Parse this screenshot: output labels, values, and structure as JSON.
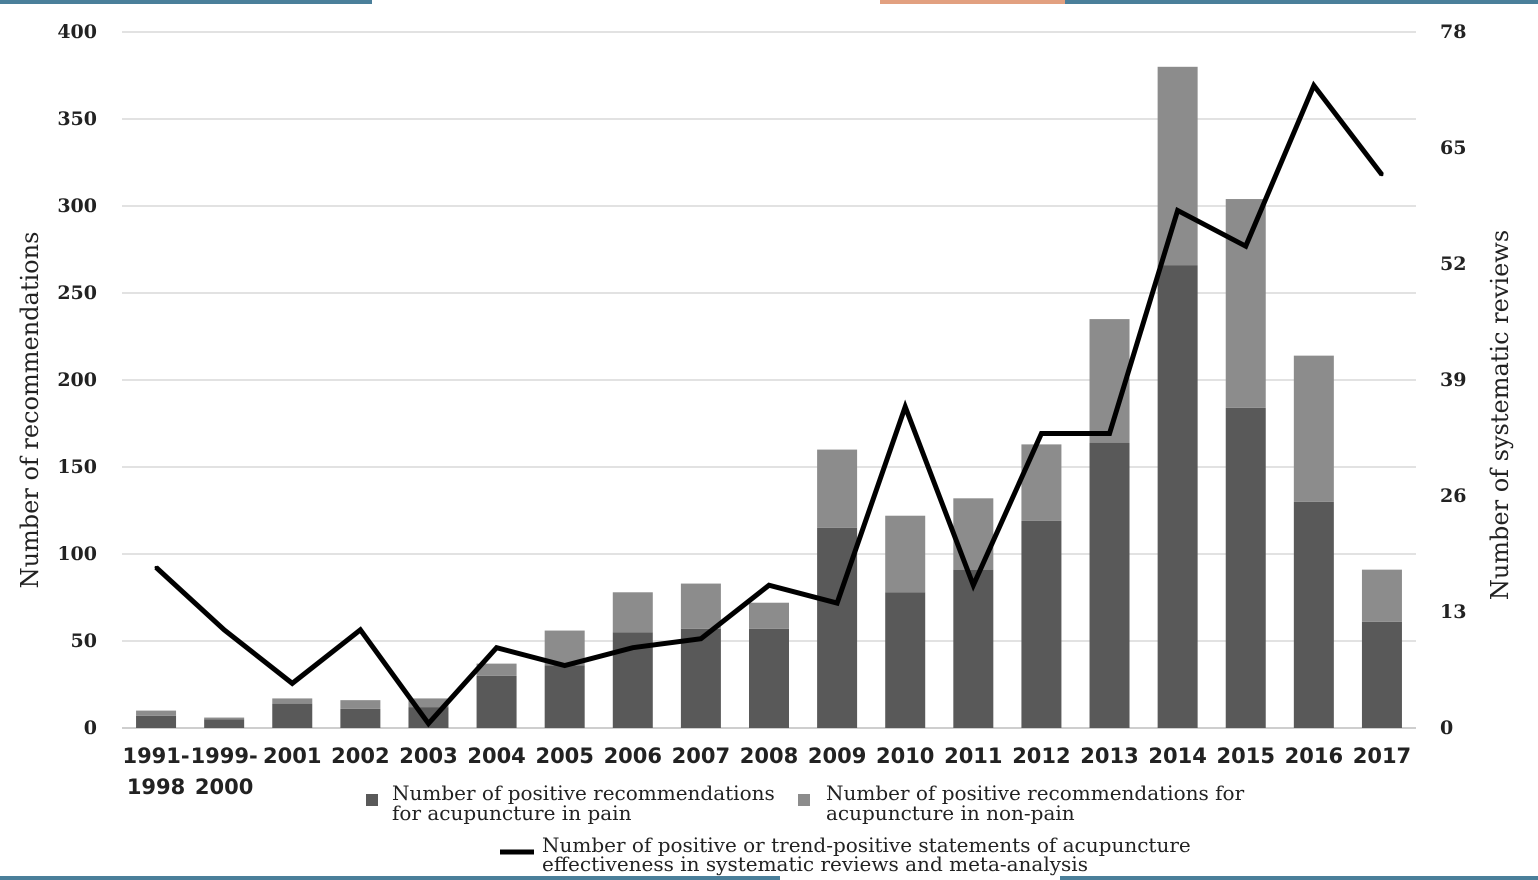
{
  "chart_data": {
    "type": "bar",
    "stacked": true,
    "categories": [
      [
        "1991-",
        "1998"
      ],
      [
        "1999-",
        "2000"
      ],
      [
        "2001"
      ],
      [
        "2002"
      ],
      [
        "2003"
      ],
      [
        "2004"
      ],
      [
        "2005"
      ],
      [
        "2006"
      ],
      [
        "2007"
      ],
      [
        "2008"
      ],
      [
        "2009"
      ],
      [
        "2010"
      ],
      [
        "2011"
      ],
      [
        "2012"
      ],
      [
        "2013"
      ],
      [
        "2014"
      ],
      [
        "2015"
      ],
      [
        "2016"
      ],
      [
        "2017"
      ]
    ],
    "series": [
      {
        "name_lines": [
          "Number of positive recommendations",
          "for acupuncture in pain"
        ],
        "kind": "bar",
        "axis": "left",
        "color": "#595959",
        "values": [
          7,
          5,
          14,
          11,
          12,
          30,
          36,
          55,
          57,
          57,
          115,
          78,
          91,
          119,
          164,
          266,
          184,
          130,
          61
        ]
      },
      {
        "name_lines": [
          "Number of positive recommendations for",
          "acupuncture in non-pain"
        ],
        "kind": "bar",
        "axis": "left",
        "color": "#8c8c8c",
        "values": [
          3,
          1,
          3,
          5,
          5,
          7,
          20,
          23,
          26,
          15,
          45,
          44,
          41,
          44,
          71,
          114,
          120,
          84,
          30
        ]
      },
      {
        "name_lines": [
          "Number of positive or trend-positive statements of acupuncture",
          "effectiveness in systematic reviews and meta-analysis"
        ],
        "kind": "line",
        "axis": "right",
        "color": "#000000",
        "values": [
          18,
          11,
          5,
          11,
          0.5,
          9,
          7,
          9,
          10,
          16,
          14,
          36,
          16,
          33,
          33,
          58,
          54,
          72,
          62
        ]
      }
    ],
    "ylabel_left": "Number of recommendations",
    "ylabel_right": "Number of systematic reviews",
    "ylim_left": [
      0,
      400
    ],
    "yticks_left": [
      0,
      50,
      100,
      150,
      200,
      250,
      300,
      350,
      400
    ],
    "ylim_right": [
      0,
      78
    ],
    "yticks_right": [
      0,
      13,
      26,
      39,
      52,
      65,
      78
    ],
    "grid": true,
    "legend_position": "bottom"
  }
}
